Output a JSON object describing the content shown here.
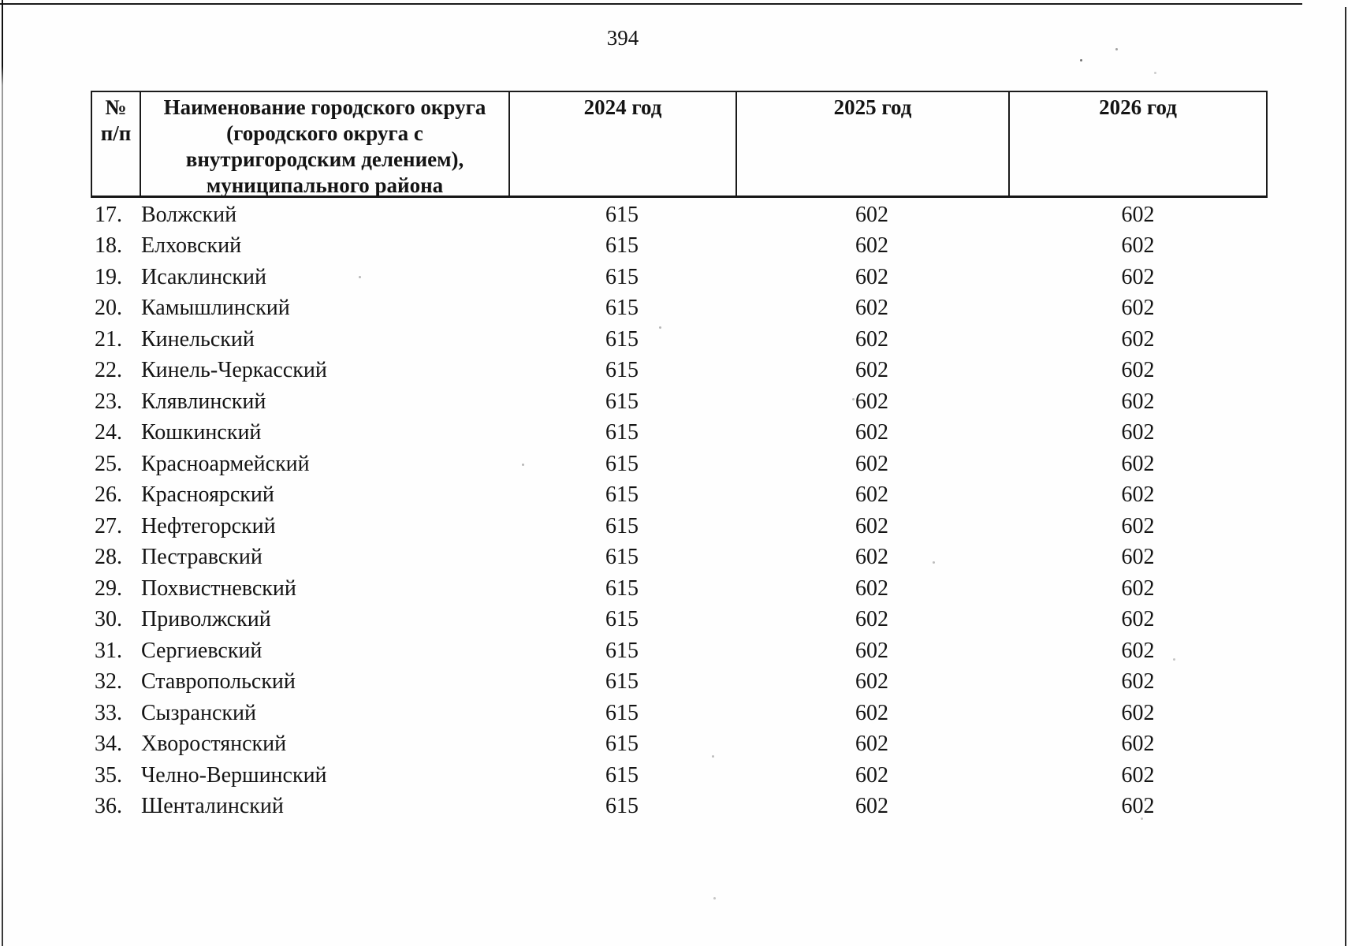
{
  "page": {
    "number": "394"
  },
  "table": {
    "header": {
      "col_num": "№\nп/п",
      "col_name": "Наименование городского округа\n(городского округа с\nвнутригородским делением),\nмуниципального района",
      "col_2024": "2024 год",
      "col_2025": "2025 год",
      "col_2026": "2026 год"
    },
    "rows": [
      {
        "num": "17.",
        "name": "Волжский",
        "y2024": "615",
        "y2025": "602",
        "y2026": "602"
      },
      {
        "num": "18.",
        "name": "Елховский",
        "y2024": "615",
        "y2025": "602",
        "y2026": "602"
      },
      {
        "num": "19.",
        "name": "Исаклинский",
        "y2024": "615",
        "y2025": "602",
        "y2026": "602"
      },
      {
        "num": "20.",
        "name": "Камышлинский",
        "y2024": "615",
        "y2025": "602",
        "y2026": "602"
      },
      {
        "num": "21.",
        "name": "Кинельский",
        "y2024": "615",
        "y2025": "602",
        "y2026": "602"
      },
      {
        "num": "22.",
        "name": "Кинель-Черкасский",
        "y2024": "615",
        "y2025": "602",
        "y2026": "602"
      },
      {
        "num": "23.",
        "name": "Клявлинский",
        "y2024": "615",
        "y2025": "602",
        "y2026": "602"
      },
      {
        "num": "24.",
        "name": "Кошкинский",
        "y2024": "615",
        "y2025": "602",
        "y2026": "602"
      },
      {
        "num": "25.",
        "name": "Красноармейский",
        "y2024": "615",
        "y2025": "602",
        "y2026": "602"
      },
      {
        "num": "26.",
        "name": "Красноярский",
        "y2024": "615",
        "y2025": "602",
        "y2026": "602"
      },
      {
        "num": "27.",
        "name": "Нефтегорский",
        "y2024": "615",
        "y2025": "602",
        "y2026": "602"
      },
      {
        "num": "28.",
        "name": "Пестравский",
        "y2024": "615",
        "y2025": "602",
        "y2026": "602"
      },
      {
        "num": "29.",
        "name": "Похвистневский",
        "y2024": "615",
        "y2025": "602",
        "y2026": "602"
      },
      {
        "num": "30.",
        "name": "Приволжский",
        "y2024": "615",
        "y2025": "602",
        "y2026": "602"
      },
      {
        "num": "31.",
        "name": "Сергиевский",
        "y2024": "615",
        "y2025": "602",
        "y2026": "602"
      },
      {
        "num": "32.",
        "name": "Ставропольский",
        "y2024": "615",
        "y2025": "602",
        "y2026": "602"
      },
      {
        "num": "33.",
        "name": "Сызранский",
        "y2024": "615",
        "y2025": "602",
        "y2026": "602"
      },
      {
        "num": "34.",
        "name": "Хворостянский",
        "y2024": "615",
        "y2025": "602",
        "y2026": "602"
      },
      {
        "num": "35.",
        "name": "Челно-Вершинский",
        "y2024": "615",
        "y2025": "602",
        "y2026": "602"
      },
      {
        "num": "36.",
        "name": "Шенталинский",
        "y2024": "615",
        "y2025": "602",
        "y2026": "602"
      }
    ]
  }
}
